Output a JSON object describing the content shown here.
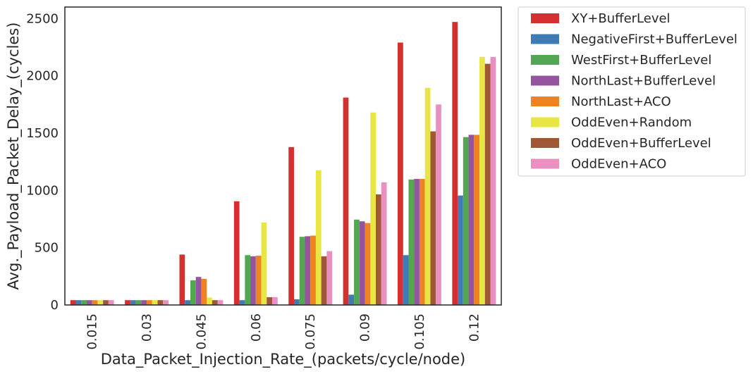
{
  "chart_data": {
    "type": "bar",
    "xlabel": "Data_Packet_Injection_Rate_(packets/cycle/node)",
    "ylabel": "Avg._Payload_Packet_Delay_(cycles)",
    "ylim": [
      0,
      2600
    ],
    "yticks": [
      0,
      500,
      1000,
      1500,
      2000,
      2500
    ],
    "grid": false,
    "legend_position": "outside-right",
    "categories": [
      "0.015",
      "0.03",
      "0.045",
      "0.06",
      "0.075",
      "0.09",
      "0.105",
      "0.12"
    ],
    "series": [
      {
        "name": "XY+BufferLevel",
        "color": "#d62f2f",
        "values": [
          42,
          42,
          440,
          905,
          1378,
          1810,
          2290,
          2470
        ]
      },
      {
        "name": "NegativeFirst+BufferLevel",
        "color": "#3f7cb5",
        "values": [
          42,
          42,
          42,
          42,
          50,
          90,
          435,
          955
        ]
      },
      {
        "name": "WestFirst+BufferLevel",
        "color": "#54a752",
        "values": [
          42,
          42,
          215,
          435,
          595,
          745,
          1095,
          1465
        ]
      },
      {
        "name": "NorthLast+BufferLevel",
        "color": "#95549f",
        "values": [
          42,
          42,
          245,
          425,
          600,
          730,
          1100,
          1485
        ]
      },
      {
        "name": "NorthLast+ACO",
        "color": "#ef8221",
        "values": [
          42,
          42,
          228,
          430,
          605,
          715,
          1100,
          1485
        ]
      },
      {
        "name": "OddEven+Random",
        "color": "#e8e642",
        "values": [
          42,
          42,
          65,
          720,
          1175,
          1680,
          1895,
          2165
        ]
      },
      {
        "name": "OddEven+BufferLevel",
        "color": "#9e5836",
        "values": [
          42,
          42,
          42,
          68,
          425,
          965,
          1515,
          2105
        ]
      },
      {
        "name": "OddEven+ACO",
        "color": "#e990c0",
        "values": [
          42,
          42,
          42,
          68,
          470,
          1070,
          1750,
          2165
        ]
      }
    ]
  }
}
